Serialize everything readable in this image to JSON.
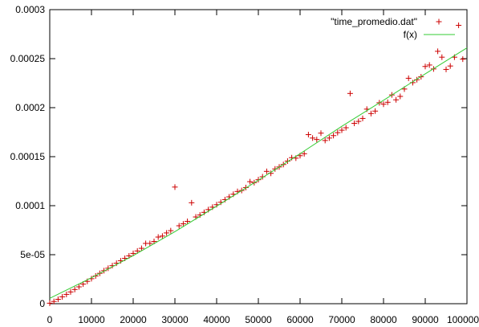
{
  "chart_data": {
    "type": "scatter",
    "title": "",
    "xlabel": "",
    "ylabel": "",
    "xlim": [
      0,
      100000
    ],
    "ylim": [
      0,
      0.0003
    ],
    "grid": false,
    "legend_position": "top-right",
    "x_ticks": [
      0,
      10000,
      20000,
      30000,
      40000,
      50000,
      60000,
      70000,
      80000,
      90000,
      100000
    ],
    "x_tick_labels": [
      "0",
      "10000",
      "20000",
      "30000",
      "40000",
      "50000",
      "60000",
      "70000",
      "80000",
      "90000",
      "100000"
    ],
    "y_ticks": [
      0,
      5e-05,
      0.0001,
      0.00015,
      0.0002,
      0.00025,
      0.0003
    ],
    "y_tick_labels": [
      "0",
      "5e-05",
      "0.0001",
      "0.00015",
      "0.0002",
      "0.00025",
      "0.0003"
    ],
    "series": [
      {
        "name": "\"time_promedio.dat\"",
        "kind": "scatter",
        "marker": "plus",
        "color": "#cc0000",
        "points": [
          [
            0,
            5e-07
          ],
          [
            1000,
            2.3e-06
          ],
          [
            2000,
            4.5e-06
          ],
          [
            3000,
            7e-06
          ],
          [
            4000,
            9.5e-06
          ],
          [
            5000,
            1.2e-05
          ],
          [
            6000,
            1.45e-05
          ],
          [
            7000,
            1.72e-05
          ],
          [
            8000,
            2e-05
          ],
          [
            9000,
            2.28e-05
          ],
          [
            10000,
            2.55e-05
          ],
          [
            11000,
            2.83e-05
          ],
          [
            12000,
            3.1e-05
          ],
          [
            13000,
            3.37e-05
          ],
          [
            14000,
            3.62e-05
          ],
          [
            15000,
            3.88e-05
          ],
          [
            16000,
            4.13e-05
          ],
          [
            17000,
            4.38e-05
          ],
          [
            18000,
            4.63e-05
          ],
          [
            19000,
            4.88e-05
          ],
          [
            20000,
            5.13e-05
          ],
          [
            21000,
            5.38e-05
          ],
          [
            22000,
            5.65e-05
          ],
          [
            23000,
            6.15e-05
          ],
          [
            24000,
            6.15e-05
          ],
          [
            25000,
            6.35e-05
          ],
          [
            26000,
            6.8e-05
          ],
          [
            27000,
            6.9e-05
          ],
          [
            28000,
            7.22e-05
          ],
          [
            29000,
            7.45e-05
          ],
          [
            30000,
            0.000119
          ],
          [
            31000,
            7.95e-05
          ],
          [
            32000,
            8.15e-05
          ],
          [
            33000,
            8.4e-05
          ],
          [
            34000,
            0.000103
          ],
          [
            35000,
            8.85e-05
          ],
          [
            36000,
            9.05e-05
          ],
          [
            37000,
            9.32e-05
          ],
          [
            38000,
            9.6e-05
          ],
          [
            39000,
            9.85e-05
          ],
          [
            40000,
            0.000101
          ],
          [
            41000,
            0.0001035
          ],
          [
            42000,
            0.0001062
          ],
          [
            43000,
            0.000109
          ],
          [
            44000,
            0.0001117
          ],
          [
            45000,
            0.0001145
          ],
          [
            46000,
            0.0001155
          ],
          [
            47000,
            0.0001185
          ],
          [
            48000,
            0.0001245
          ],
          [
            49000,
            0.0001235
          ],
          [
            50000,
            0.0001265
          ],
          [
            51000,
            0.0001295
          ],
          [
            52000,
            0.000135
          ],
          [
            53000,
            0.000133
          ],
          [
            54000,
            0.0001375
          ],
          [
            55000,
            0.0001395
          ],
          [
            56000,
            0.000142
          ],
          [
            57000,
            0.0001455
          ],
          [
            58000,
            0.000149
          ],
          [
            59000,
            0.0001485
          ],
          [
            60000,
            0.000151
          ],
          [
            61000,
            0.000153
          ],
          [
            62000,
            0.0001725
          ],
          [
            63000,
            0.000169
          ],
          [
            64000,
            0.0001675
          ],
          [
            65000,
            0.000174
          ],
          [
            66000,
            0.0001665
          ],
          [
            67000,
            0.000169
          ],
          [
            68000,
            0.0001715
          ],
          [
            69000,
            0.0001745
          ],
          [
            70000,
            0.000177
          ],
          [
            71000,
            0.0001795
          ],
          [
            72000,
            0.0002145
          ],
          [
            73000,
            0.000184
          ],
          [
            74000,
            0.000186
          ],
          [
            75000,
            0.000189
          ],
          [
            76000,
            0.0001985
          ],
          [
            77000,
            0.000194
          ],
          [
            78000,
            0.0001965
          ],
          [
            79000,
            0.000205
          ],
          [
            80000,
            0.0002035
          ],
          [
            81000,
            0.0002055
          ],
          [
            82000,
            0.000213
          ],
          [
            83000,
            0.000208
          ],
          [
            84000,
            0.0002115
          ],
          [
            85000,
            0.000219
          ],
          [
            86000,
            0.00023
          ],
          [
            87000,
            0.0002255
          ],
          [
            88000,
            0.0002285
          ],
          [
            89000,
            0.0002315
          ],
          [
            90000,
            0.000242
          ],
          [
            91000,
            0.0002435
          ],
          [
            92000,
            0.0002395
          ],
          [
            93000,
            0.0002575
          ],
          [
            94000,
            0.0002515
          ],
          [
            95000,
            0.000239
          ],
          [
            96000,
            0.0002425
          ],
          [
            97000,
            0.0002515
          ],
          [
            98000,
            0.000284
          ],
          [
            99000,
            0.0002495
          ]
        ]
      },
      {
        "name": "f(x)",
        "kind": "line",
        "color": "#33cc33",
        "points": [
          [
            0,
            5.5e-06
          ],
          [
            10000,
            2.65e-05
          ],
          [
            20000,
            4.9e-05
          ],
          [
            30000,
            7.35e-05
          ],
          [
            40000,
            9.95e-05
          ],
          [
            50000,
            0.000126
          ],
          [
            60000,
            0.000153
          ],
          [
            70000,
            0.000181
          ],
          [
            80000,
            0.0002075
          ],
          [
            90000,
            0.0002345
          ],
          [
            100000,
            0.000261
          ]
        ]
      }
    ]
  }
}
